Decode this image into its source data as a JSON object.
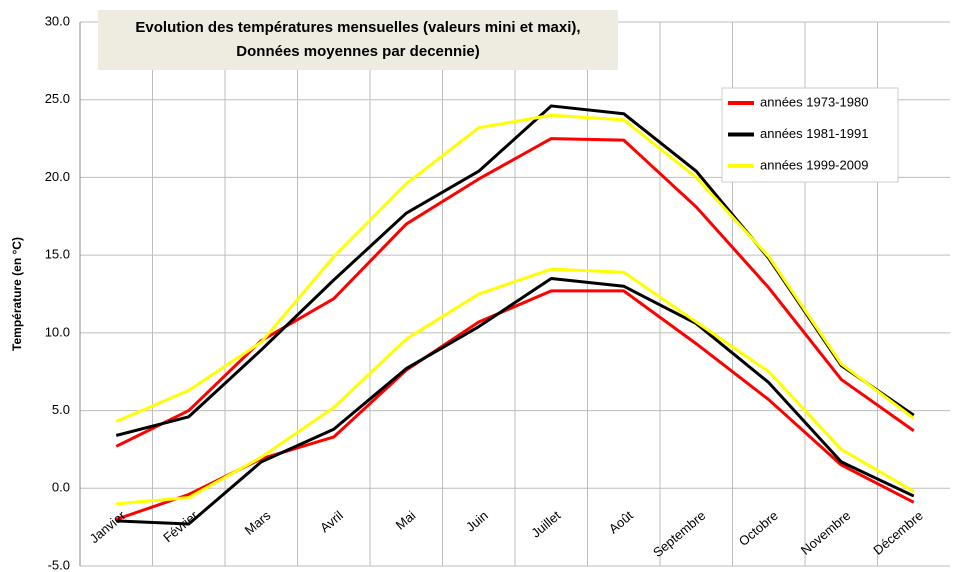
{
  "chart_data": {
    "type": "line",
    "title": [
      "Evolution des températures mensuelles (valeurs mini et maxi),",
      "Données moyennes par decennie)"
    ],
    "y_label": "Température (en °C)",
    "categories": [
      "Janvier",
      "Février",
      "Mars",
      "Avril",
      "Mai",
      "Juin",
      "Juillet",
      "Août",
      "Septembre",
      "Octobre",
      "Novembre",
      "Décembre"
    ],
    "ylim": [
      -5,
      30
    ],
    "yticks": [
      {
        "value": -5,
        "label": "-5.0"
      },
      {
        "value": 0,
        "label": "0.0"
      },
      {
        "value": 5,
        "label": "5.0"
      },
      {
        "value": 10,
        "label": "10.0"
      },
      {
        "value": 15,
        "label": "15.0"
      },
      {
        "value": 20,
        "label": "20.0"
      },
      {
        "value": 25,
        "label": "25.0"
      },
      {
        "value": 30,
        "label": "30.0"
      }
    ],
    "grid": true,
    "legend": "upper right",
    "series": [
      {
        "name": "années 1973-1980",
        "color": "#ff0000",
        "max": [
          2.7,
          5.0,
          9.5,
          12.2,
          17.0,
          19.9,
          22.5,
          22.4,
          18.1,
          12.9,
          7.0,
          3.7
        ],
        "min": [
          -2.0,
          -0.4,
          1.9,
          3.3,
          7.6,
          10.7,
          12.7,
          12.7,
          9.3,
          5.7,
          1.5,
          -0.9
        ]
      },
      {
        "name": "années 1981-1991",
        "color": "#000000",
        "max": [
          3.4,
          4.6,
          8.9,
          13.4,
          17.7,
          20.4,
          24.6,
          24.1,
          20.4,
          14.8,
          7.9,
          4.7
        ],
        "min": [
          -2.1,
          -2.3,
          1.7,
          3.8,
          7.7,
          10.4,
          13.5,
          13.0,
          10.6,
          6.8,
          1.7,
          -0.5
        ]
      },
      {
        "name": "années 1999-2009",
        "color": "#ffff00",
        "max": [
          4.3,
          6.3,
          9.4,
          14.9,
          19.6,
          23.2,
          24.0,
          23.7,
          20.0,
          14.9,
          8.0,
          4.5
        ],
        "min": [
          -1.0,
          -0.6,
          2.0,
          5.2,
          9.6,
          12.5,
          14.1,
          13.9,
          10.7,
          7.5,
          2.5,
          -0.2
        ]
      }
    ]
  }
}
